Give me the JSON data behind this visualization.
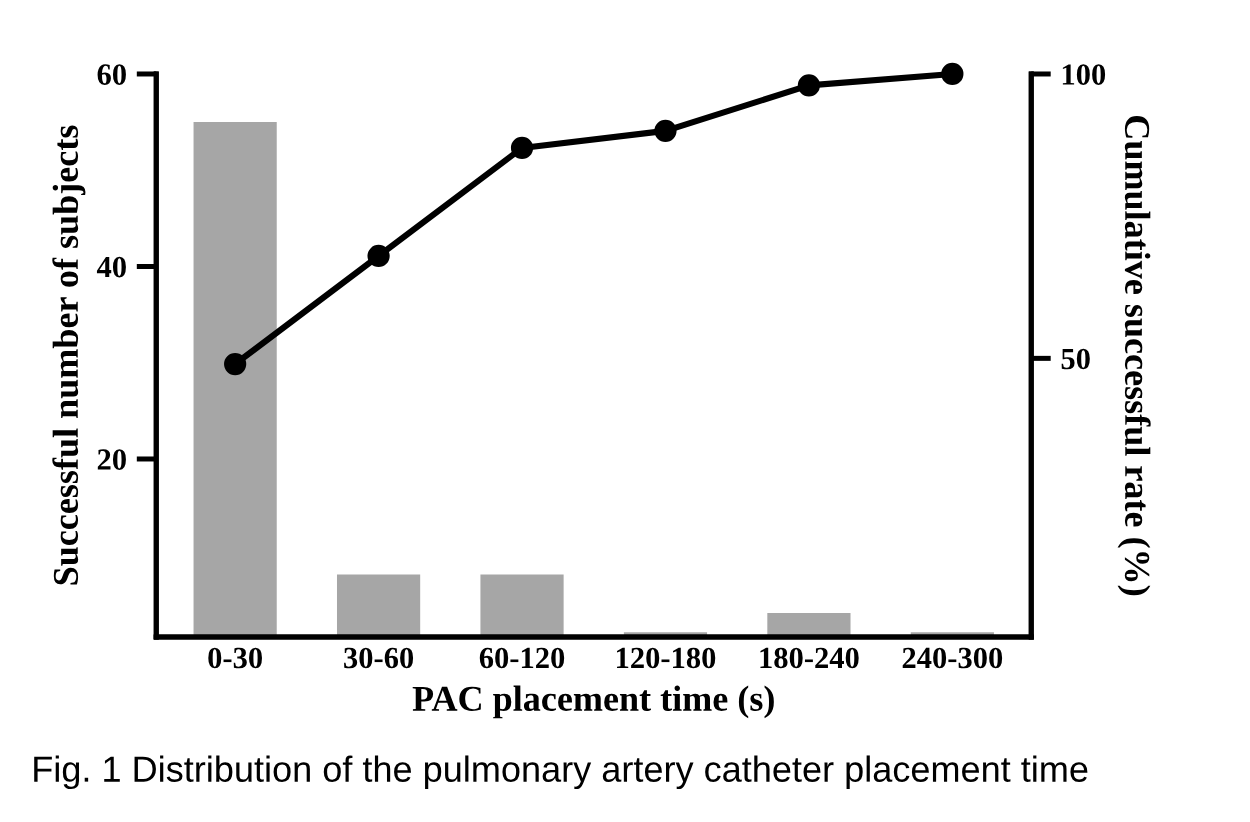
{
  "chart_data": {
    "type": "bar",
    "xlabel": "PAC placement time (s)",
    "ylabel": "Successful number of subjects",
    "y2label": "Cumulative successful rate (%)",
    "categories": [
      "0-30",
      "30-60",
      "60-120",
      "120-180",
      "180-240",
      "240-300"
    ],
    "series": [
      {
        "color": "#a6a6a6",
        "values": [
          55,
          8,
          8,
          2,
          4,
          2
        ]
      },
      {
        "type": "line",
        "axis": "y2",
        "color": "#000000",
        "marker": "circle",
        "values": [
          49,
          68,
          87,
          90,
          98,
          100
        ]
      }
    ],
    "ylim": [
      1.5,
      60
    ],
    "yticks": [
      20,
      40,
      60
    ],
    "y2lim": [
      1,
      100
    ],
    "y2ticks": [
      50,
      100
    ],
    "grid": false,
    "legend": false,
    "annotations": [
      "Fig. 1 Distribution of the pulmonary artery catheter placement time"
    ]
  }
}
